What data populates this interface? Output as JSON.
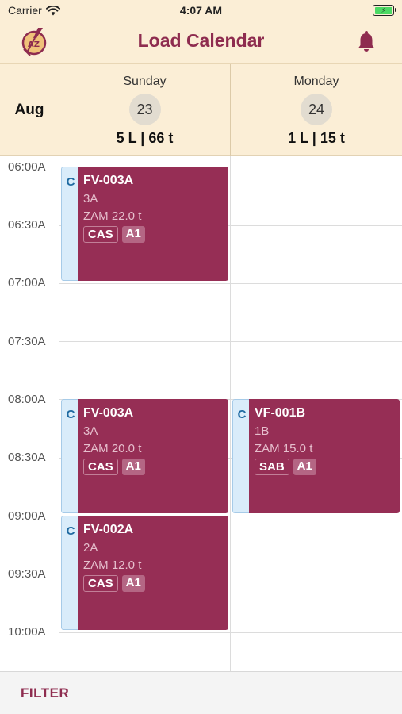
{
  "status_bar": {
    "carrier": "Carrier",
    "time": "4:07 AM",
    "battery_icon": "battery-charging-icon"
  },
  "nav": {
    "title": "Load Calendar",
    "logo_letters": "AZ",
    "bell_icon": "bell-icon"
  },
  "calendar": {
    "month": "Aug",
    "days": [
      {
        "name": "Sunday",
        "number": "23",
        "summary": "5 L | 66 t"
      },
      {
        "name": "Monday",
        "number": "24",
        "summary": "1 L | 15 t"
      }
    ],
    "time_labels": [
      "06:00A",
      "06:30A",
      "07:00A",
      "07:30A",
      "08:00A",
      "08:30A",
      "09:00A",
      "09:30A",
      "10:00A"
    ],
    "events": [
      {
        "day": "Sunday",
        "start": "06:00A",
        "end": "07:00A",
        "strip": "C",
        "title": "FV-003A",
        "sub": "3A",
        "weight": "ZAM 22.0 t",
        "tag1": "CAS",
        "tag2": "A1"
      },
      {
        "day": "Sunday",
        "start": "08:00A",
        "end": "09:00A",
        "strip": "C",
        "title": "FV-003A",
        "sub": "3A",
        "weight": "ZAM 20.0 t",
        "tag1": "CAS",
        "tag2": "A1"
      },
      {
        "day": "Sunday",
        "start": "09:00A",
        "end": "10:00A",
        "strip": "C",
        "title": "FV-002A",
        "sub": "2A",
        "weight": "ZAM 12.0 t",
        "tag1": "CAS",
        "tag2": "A1"
      },
      {
        "day": "Monday",
        "start": "08:00A",
        "end": "09:00A",
        "strip": "C",
        "title": "VF-001B",
        "sub": "1B",
        "weight": "ZAM 15.0 t",
        "tag1": "SAB",
        "tag2": "A1"
      }
    ]
  },
  "footer": {
    "filter_label": "FILTER"
  },
  "colors": {
    "accent": "#8e2c4f",
    "event_fill": "#962e55",
    "header_bg": "#fbeed6",
    "strip_bg": "#d9ecfa",
    "strip_text": "#1f6aa1"
  }
}
